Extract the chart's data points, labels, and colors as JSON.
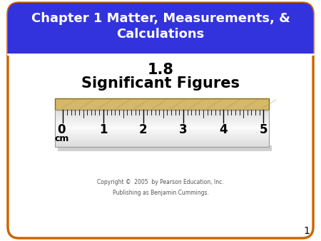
{
  "title_line1": "Chapter 1 Matter, Measurements, &",
  "title_line2": "Calculations",
  "subtitle_number": "1.8",
  "subtitle_text": "Significant Figures",
  "copyright": "Copyright ©  2005  by Pearson Education, Inc.\nPublishing as Benjamin Cummings.",
  "slide_number": "1",
  "bg_color": "#ffffff",
  "border_color": "#cc6600",
  "header_bg": "#3333dd",
  "header_text_color": "#ffffff",
  "ruler_wood_color": "#d4b96a",
  "ruler_wood_dark": "#8B6914",
  "ruler_wood_grain": "#b8963a",
  "ruler_shadow_color": "#bbbbbb",
  "cm_labels": [
    "0",
    "1",
    "2",
    "3",
    "4",
    "5"
  ],
  "subtitle_color": "#000000",
  "copyright_color": "#555555"
}
